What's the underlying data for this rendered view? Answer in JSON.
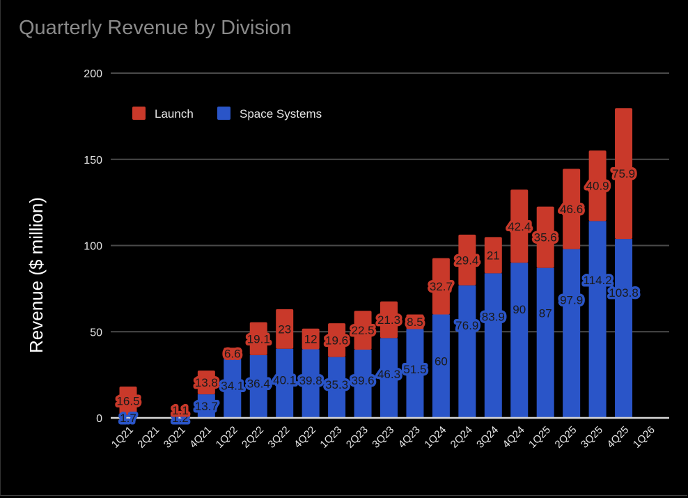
{
  "chart_data": {
    "type": "bar",
    "stacked": true,
    "title": "Quarterly Revenue by Division",
    "xlabel": "",
    "ylabel": "Revenue ($ million)",
    "ylim": [
      0,
      200
    ],
    "yticks": [
      0,
      50,
      100,
      150,
      200
    ],
    "grid": true,
    "legend_position": "top-left",
    "categories": [
      "1Q21",
      "2Q21",
      "3Q21",
      "4Q21",
      "1Q22",
      "2Q22",
      "3Q22",
      "4Q22",
      "1Q23",
      "2Q23",
      "3Q23",
      "4Q23",
      "1Q24",
      "2Q24",
      "3Q24",
      "4Q24",
      "1Q25",
      "2Q25",
      "3Q25",
      "4Q25",
      "1Q26"
    ],
    "series": [
      {
        "name": "Space Systems",
        "color": "#2a55c8",
        "values": [
          1.7,
          null,
          1.2,
          13.7,
          34.1,
          36.4,
          40.1,
          39.8,
          35.3,
          39.6,
          46.3,
          51.5,
          60,
          76.9,
          83.9,
          90,
          87,
          97.9,
          114.2,
          103.8,
          null
        ]
      },
      {
        "name": "Launch",
        "color": "#c9392a",
        "values": [
          16.5,
          null,
          1.1,
          13.8,
          6.6,
          19.1,
          23,
          12,
          19.6,
          22.5,
          21.3,
          8.5,
          32.7,
          29.4,
          21,
          42.4,
          35.6,
          46.6,
          40.9,
          75.9,
          null
        ]
      }
    ],
    "legend": [
      "Launch",
      "Space Systems"
    ]
  }
}
